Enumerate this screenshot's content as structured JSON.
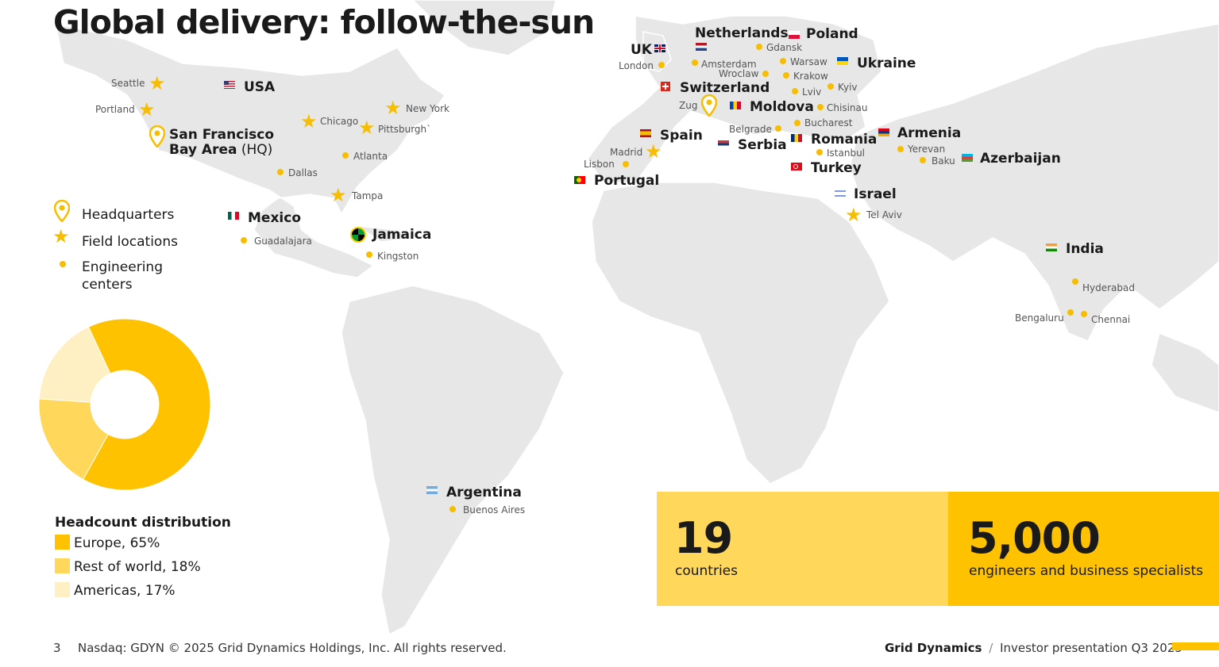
{
  "title": "Global delivery: follow-the-sun",
  "colors": {
    "accent": "#fec200",
    "mid": "#ffd75a",
    "light": "#fff0c4",
    "map": "#e8e8e8"
  },
  "countries": {
    "usa": "USA",
    "mexico": "Mexico",
    "jamaica": "Jamaica",
    "argentina": "Argentina",
    "uk": "UK",
    "netherlands": "Netherlands",
    "poland": "Poland",
    "ukraine": "Ukraine",
    "switzerland": "Switzerland",
    "moldova": "Moldova",
    "spain": "Spain",
    "serbia": "Serbia",
    "romania": "Romania",
    "armenia": "Armenia",
    "azerbaijan": "Azerbaijan",
    "portugal": "Portugal",
    "turkey": "Turkey",
    "israel": "Israel",
    "india": "India"
  },
  "hq": {
    "name": "San Francisco",
    "line2_bold": "Bay Area",
    "line2_suffix": " (HQ)"
  },
  "cities": {
    "seattle": "Seattle",
    "portland": "Portland",
    "chicago": "Chicago",
    "new_york": "New York",
    "pittsburgh": "Pittsburgh`",
    "atlanta": "Atlanta",
    "dallas": "Dallas",
    "tampa": "Tampa",
    "guadalajara": "Guadalajara",
    "kingston": "Kingston",
    "buenos_aires": "Buenos Aires",
    "london": "London",
    "amsterdam": "Amsterdam",
    "gdansk": "Gdansk",
    "warsaw": "Warsaw",
    "wroclaw": "Wroclaw",
    "krakow": "Krakow",
    "lviv": "Lviv",
    "kyiv": "Kyiv",
    "zug": "Zug",
    "chisinau": "Chisinau",
    "bucharest": "Bucharest",
    "belgrade": "Belgrade",
    "madrid": "Madrid",
    "lisbon": "Lisbon",
    "istanbul": "Istanbul",
    "yerevan": "Yerevan",
    "baku": "Baku",
    "tel_aviv": "Tel Aviv",
    "hyderabad": "Hyderabad",
    "bengaluru": "Bengaluru",
    "chennai": "Chennai"
  },
  "legend": {
    "headquarters": "Headquarters",
    "field": "Field locations",
    "engineering_1": "Engineering",
    "engineering_2": "centers"
  },
  "headcount": {
    "title": "Headcount distribution",
    "items": [
      {
        "label": "Europe, 65%",
        "value": 65,
        "color": "#fec200"
      },
      {
        "label": "Rest of world, 18%",
        "value": 18,
        "color": "#ffd75a"
      },
      {
        "label": "Americas, 17%",
        "value": 17,
        "color": "#fff0c4"
      }
    ]
  },
  "stats": [
    {
      "number": "19",
      "label": "countries"
    },
    {
      "number": "5,000",
      "label": "engineers and business specialists"
    }
  ],
  "footer": {
    "page": "3",
    "legal": "Nasdaq: GDYN © 2025 Grid Dynamics Holdings, Inc. All rights reserved.",
    "brand": "Grid Dynamics",
    "separator": "/",
    "deck": "Investor presentation Q3 2025"
  }
}
